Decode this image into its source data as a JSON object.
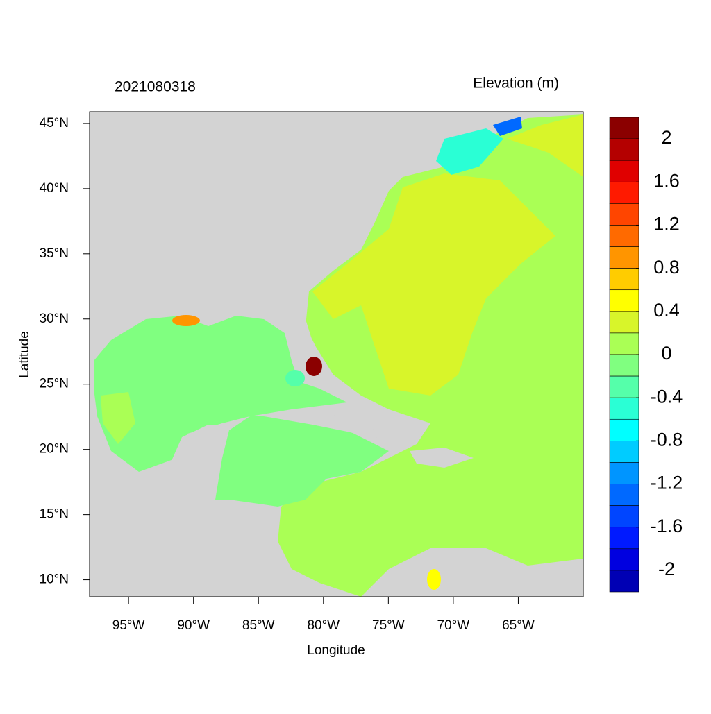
{
  "map": {
    "left_title": "2021080318",
    "right_title": "Elevation (m)",
    "x_label": "Longitude",
    "y_label": "Latitude",
    "xlim": [
      -98,
      -60
    ],
    "ylim": [
      8.7,
      45.9
    ],
    "xticks": [
      {
        "value": -95,
        "label": "95°W"
      },
      {
        "value": -90,
        "label": "90°W"
      },
      {
        "value": -85,
        "label": "85°W"
      },
      {
        "value": -80,
        "label": "80°W"
      },
      {
        "value": -75,
        "label": "75°W"
      },
      {
        "value": -70,
        "label": "70°W"
      },
      {
        "value": -65,
        "label": "65°W"
      }
    ],
    "yticks": [
      {
        "value": 10,
        "label": "10°N"
      },
      {
        "value": 15,
        "label": "15°N"
      },
      {
        "value": 20,
        "label": "20°N"
      },
      {
        "value": 25,
        "label": "25°N"
      },
      {
        "value": 30,
        "label": "30°N"
      },
      {
        "value": 35,
        "label": "35°N"
      },
      {
        "value": 40,
        "label": "40°N"
      },
      {
        "value": 45,
        "label": "45°N"
      }
    ],
    "colorbar": {
      "clim": [
        -2.2,
        2.2
      ],
      "colors": [
        "#8b0000",
        "#b40000",
        "#e00000",
        "#ff1a00",
        "#ff4500",
        "#ff6a00",
        "#ff9500",
        "#ffcc00",
        "#ffff00",
        "#d8f52a",
        "#aaff55",
        "#80ff80",
        "#55ffaa",
        "#2affd5",
        "#00ffff",
        "#00ccff",
        "#0095ff",
        "#0069ff",
        "#0045ff",
        "#001aff",
        "#0000e0",
        "#0000b4"
      ],
      "ticks": [
        2,
        1.6,
        1.2,
        0.8,
        0.4,
        0,
        -0.4,
        -0.8,
        -1.2,
        -1.6,
        -2
      ]
    }
  }
}
